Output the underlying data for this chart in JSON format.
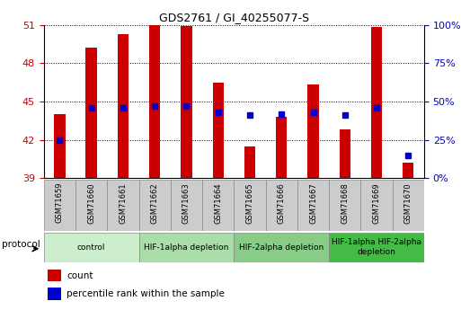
{
  "title": "GDS2761 / GI_40255077-S",
  "samples": [
    "GSM71659",
    "GSM71660",
    "GSM71661",
    "GSM71662",
    "GSM71663",
    "GSM71664",
    "GSM71665",
    "GSM71666",
    "GSM71667",
    "GSM71668",
    "GSM71669",
    "GSM71670"
  ],
  "counts": [
    44.0,
    49.2,
    50.3,
    51.4,
    50.9,
    46.5,
    41.5,
    43.8,
    46.3,
    42.8,
    50.8,
    40.2
  ],
  "percentile_ranks": [
    25,
    46,
    46,
    47,
    47,
    43,
    41,
    42,
    43,
    41,
    46,
    15
  ],
  "ylim_left": [
    39,
    51
  ],
  "ylim_right": [
    0,
    100
  ],
  "yticks_left": [
    39,
    42,
    45,
    48,
    51
  ],
  "yticks_right": [
    0,
    25,
    50,
    75,
    100
  ],
  "ytick_labels_right": [
    "0%",
    "25%",
    "50%",
    "75%",
    "100%"
  ],
  "bar_color": "#cc0000",
  "dot_color": "#0000cc",
  "bar_width": 0.35,
  "groups": [
    {
      "label": "control",
      "start": 0,
      "end": 3,
      "color": "#cceecc"
    },
    {
      "label": "HIF-1alpha depletion",
      "start": 3,
      "end": 6,
      "color": "#aaddaa"
    },
    {
      "label": "HIF-2alpha depletion",
      "start": 6,
      "end": 9,
      "color": "#88cc88"
    },
    {
      "label": "HIF-1alpha HIF-2alpha\ndepletion",
      "start": 9,
      "end": 12,
      "color": "#44bb44"
    }
  ],
  "protocol_label": "protocol",
  "legend_count_label": "count",
  "legend_percentile_label": "percentile rank within the sample",
  "bg_plot": "#ffffff",
  "grid_color": "#000000",
  "tick_color_left": "#cc0000",
  "tick_color_right": "#0000cc",
  "sample_box_color": "#cccccc",
  "sample_box_edge": "#888888"
}
